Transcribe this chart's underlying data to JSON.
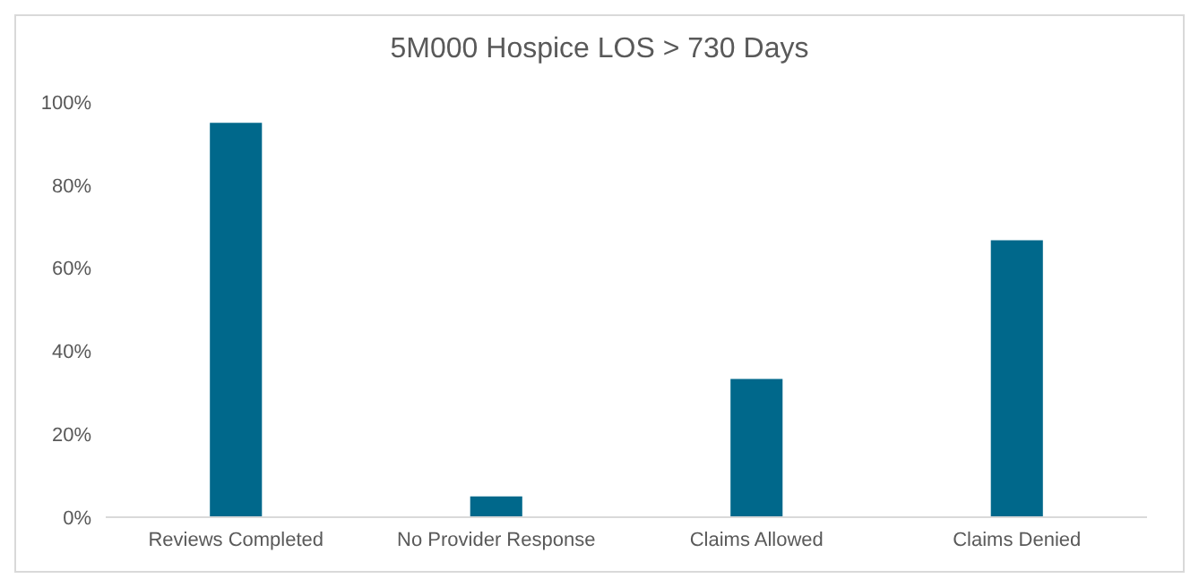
{
  "chart_data": {
    "type": "bar",
    "title": "5M000 Hospice LOS > 730 Days",
    "categories": [
      "Reviews Completed",
      "No Provider Response",
      "Claims Allowed",
      "Claims Denied"
    ],
    "values": [
      95,
      5,
      33.3,
      66.7
    ],
    "color": "#00688b",
    "ylim": [
      0,
      100
    ],
    "yticks": [
      {
        "value": 0,
        "label": "0%"
      },
      {
        "value": 20,
        "label": "20%"
      },
      {
        "value": 40,
        "label": "40%"
      },
      {
        "value": 60,
        "label": "60%"
      },
      {
        "value": 80,
        "label": "80%"
      },
      {
        "value": 100,
        "label": "100%"
      }
    ],
    "grid": false
  }
}
